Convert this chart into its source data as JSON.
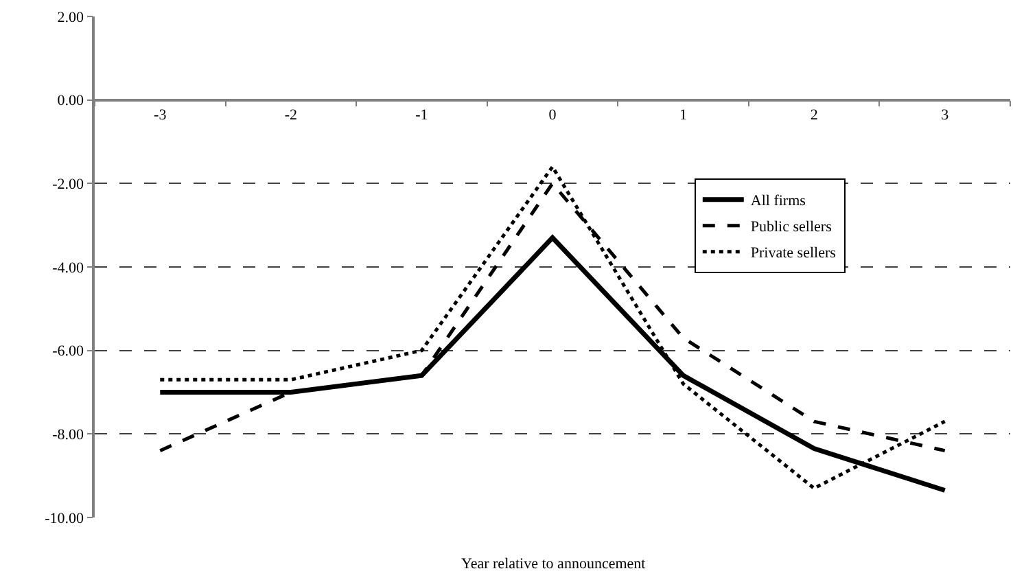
{
  "chart_data": {
    "type": "line",
    "xlabel": "Year relative to announcement",
    "categories": [
      "-3",
      "-2",
      "-1",
      "0",
      "1",
      "2",
      "3"
    ],
    "series": [
      {
        "name": "All firms",
        "color": "#000000",
        "line_style": "solid",
        "values": [
          -7.0,
          -7.0,
          -6.6,
          -3.3,
          -6.6,
          -8.35,
          -9.35
        ]
      },
      {
        "name": "Public sellers",
        "color": "#000000",
        "line_style": "dashed",
        "values": [
          -8.4,
          -7.0,
          -6.6,
          -2.0,
          -5.7,
          -7.7,
          -8.4
        ]
      },
      {
        "name": "Private sellers",
        "color": "#000000",
        "line_style": "dotted",
        "values": [
          -6.7,
          -6.7,
          -6.0,
          -1.6,
          -6.8,
          -9.3,
          -7.7
        ]
      }
    ],
    "ylim": [
      -10,
      2
    ],
    "yticks": [
      {
        "value": -10,
        "label": "-10.00"
      },
      {
        "value": -8,
        "label": "-8.00"
      },
      {
        "value": -6,
        "label": "-6.00"
      },
      {
        "value": -4,
        "label": "-4.00"
      },
      {
        "value": -2,
        "label": "-2.00"
      },
      {
        "value": 0,
        "label": "0.00"
      },
      {
        "value": 2,
        "label": "2.00"
      }
    ],
    "grid": "y",
    "legend": "top right",
    "marker": "none"
  }
}
